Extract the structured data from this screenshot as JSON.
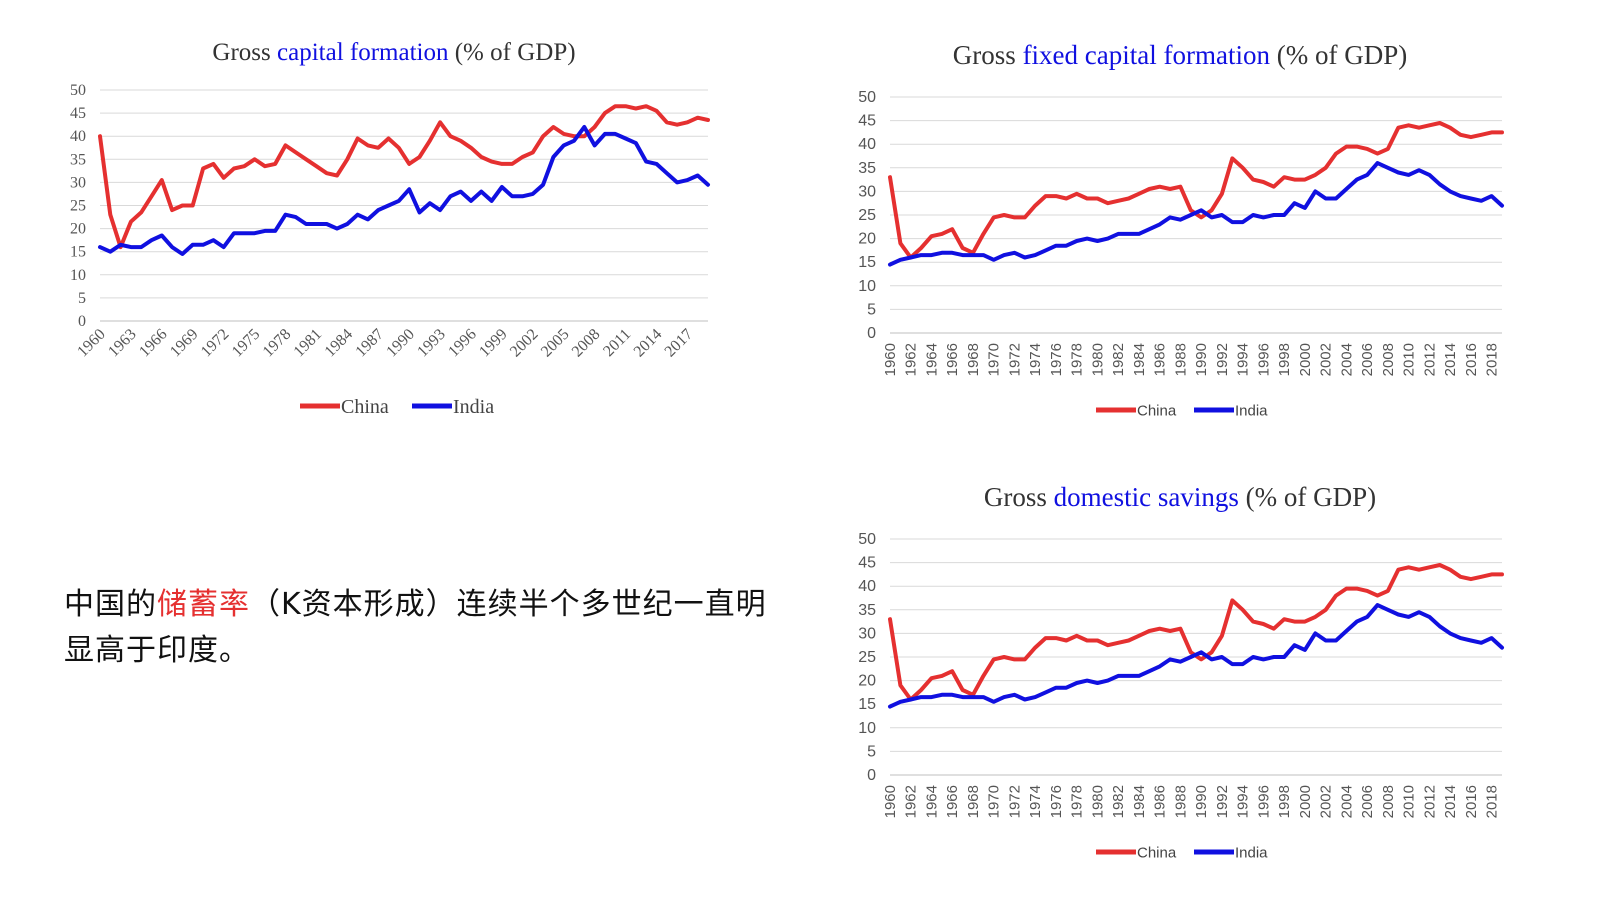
{
  "caption": {
    "before": "中国的",
    "highlight": "储蓄率",
    "after": "（K资本形成）连续半个多世纪一直明显高于印度。"
  },
  "colors": {
    "china": "#e53030",
    "india": "#1010e0",
    "title_highlight": "#1010e0",
    "grid": "#d9d9d9"
  },
  "chart_data": [
    {
      "type": "line",
      "title": {
        "prefix": "Gross ",
        "highlight": "capital formation",
        "suffix": " (% of GDP)"
      },
      "x": [
        1960,
        1961,
        1962,
        1963,
        1964,
        1965,
        1966,
        1967,
        1968,
        1969,
        1970,
        1971,
        1972,
        1973,
        1974,
        1975,
        1976,
        1977,
        1978,
        1979,
        1980,
        1981,
        1982,
        1983,
        1984,
        1985,
        1986,
        1987,
        1988,
        1989,
        1990,
        1991,
        1992,
        1993,
        1994,
        1995,
        1996,
        1997,
        1998,
        1999,
        2000,
        2001,
        2002,
        2003,
        2004,
        2005,
        2006,
        2007,
        2008,
        2009,
        2010,
        2011,
        2012,
        2013,
        2014,
        2015,
        2016,
        2017,
        2018,
        2019
      ],
      "xticks": [
        "1960",
        "1963",
        "1966",
        "1969",
        "1972",
        "1975",
        "1978",
        "1981",
        "1984",
        "1987",
        "1990",
        "1993",
        "1996",
        "1999",
        "2002",
        "2005",
        "2008",
        "2011",
        "2014",
        "2017"
      ],
      "ylim": [
        0,
        50
      ],
      "yticks": [
        "0",
        "5",
        "10",
        "15",
        "20",
        "25",
        "30",
        "35",
        "40",
        "45",
        "50"
      ],
      "series": [
        {
          "name": "China",
          "values": [
            40,
            23,
            16,
            21.5,
            23.5,
            27,
            30.5,
            24,
            25,
            25,
            33,
            34,
            31,
            33,
            33.5,
            35,
            33.5,
            34,
            38,
            36.5,
            35,
            33.5,
            32,
            31.5,
            35,
            39.5,
            38,
            37.5,
            39.5,
            37.5,
            34,
            35.5,
            39,
            43,
            40,
            39,
            37.5,
            35.5,
            34.5,
            34,
            34,
            35.5,
            36.5,
            40,
            42,
            40.5,
            40,
            40,
            42,
            45,
            46.5,
            46.5,
            46,
            46.5,
            45.5,
            43,
            42.5,
            43,
            44,
            43.5
          ]
        },
        {
          "name": "India",
          "values": [
            16,
            15,
            16.5,
            16,
            16,
            17.5,
            18.5,
            16,
            14.5,
            16.5,
            16.5,
            17.5,
            16,
            19,
            19,
            19,
            19.5,
            19.5,
            23,
            22.5,
            21,
            21,
            21,
            20,
            21,
            23,
            22,
            24,
            25,
            26,
            28.5,
            23.5,
            25.5,
            24,
            27,
            28,
            26,
            28,
            26,
            29,
            27,
            27,
            27.5,
            29.5,
            35.5,
            38,
            39,
            42,
            38,
            40.5,
            40.5,
            39.5,
            38.5,
            34.5,
            34,
            32,
            30,
            30.5,
            31.5,
            29.5
          ]
        }
      ]
    },
    {
      "type": "line",
      "title": {
        "prefix": "Gross ",
        "highlight": "fixed capital formation",
        "suffix": " (% of GDP)"
      },
      "x": [
        1960,
        1961,
        1962,
        1963,
        1964,
        1965,
        1966,
        1967,
        1968,
        1969,
        1970,
        1971,
        1972,
        1973,
        1974,
        1975,
        1976,
        1977,
        1978,
        1979,
        1980,
        1981,
        1982,
        1983,
        1984,
        1985,
        1986,
        1987,
        1988,
        1989,
        1990,
        1991,
        1992,
        1993,
        1994,
        1995,
        1996,
        1997,
        1998,
        1999,
        2000,
        2001,
        2002,
        2003,
        2004,
        2005,
        2006,
        2007,
        2008,
        2009,
        2010,
        2011,
        2012,
        2013,
        2014,
        2015,
        2016,
        2017,
        2018,
        2019
      ],
      "xticks": [
        "1960",
        "1962",
        "1964",
        "1966",
        "1968",
        "1970",
        "1972",
        "1974",
        "1976",
        "1978",
        "1980",
        "1982",
        "1984",
        "1986",
        "1988",
        "1990",
        "1992",
        "1994",
        "1996",
        "1998",
        "2000",
        "2002",
        "2004",
        "2006",
        "2008",
        "2010",
        "2012",
        "2014",
        "2016",
        "2018"
      ],
      "ylim": [
        0,
        50
      ],
      "yticks": [
        "0",
        "5",
        "10",
        "15",
        "20",
        "25",
        "30",
        "35",
        "40",
        "45",
        "50"
      ],
      "series": [
        {
          "name": "China",
          "values": [
            33,
            19,
            16,
            18,
            20.5,
            21,
            22,
            18,
            17,
            21,
            24.5,
            25,
            24.5,
            24.5,
            27,
            29,
            29,
            28.5,
            29.5,
            28.5,
            28.5,
            27.5,
            28,
            28.5,
            29.5,
            30.5,
            31,
            30.5,
            31,
            26,
            24.5,
            26,
            29.5,
            37,
            35,
            32.5,
            32,
            31,
            33,
            32.5,
            32.5,
            33.5,
            35,
            38,
            39.5,
            39.5,
            39,
            38,
            39,
            43.5,
            44,
            43.5,
            44,
            44.5,
            43.5,
            42,
            41.5,
            42,
            42.5,
            42.5
          ]
        },
        {
          "name": "India",
          "values": [
            14.5,
            15.5,
            16,
            16.5,
            16.5,
            17,
            17,
            16.5,
            16.5,
            16.5,
            15.5,
            16.5,
            17,
            16,
            16.5,
            17.5,
            18.5,
            18.5,
            19.5,
            20,
            19.5,
            20,
            21,
            21,
            21,
            22,
            23,
            24.5,
            24,
            25,
            26,
            24.5,
            25,
            23.5,
            23.5,
            25,
            24.5,
            25,
            25,
            27.5,
            26.5,
            30,
            28.5,
            28.5,
            30.5,
            32.5,
            33.5,
            36,
            35,
            34,
            33.5,
            34.5,
            33.5,
            31.5,
            30,
            29,
            28.5,
            28,
            29,
            27
          ]
        }
      ]
    },
    {
      "type": "line",
      "title": {
        "prefix": "Gross ",
        "highlight": "domestic savings",
        "suffix": " (% of GDP)"
      },
      "x": [
        1960,
        1961,
        1962,
        1963,
        1964,
        1965,
        1966,
        1967,
        1968,
        1969,
        1970,
        1971,
        1972,
        1973,
        1974,
        1975,
        1976,
        1977,
        1978,
        1979,
        1980,
        1981,
        1982,
        1983,
        1984,
        1985,
        1986,
        1987,
        1988,
        1989,
        1990,
        1991,
        1992,
        1993,
        1994,
        1995,
        1996,
        1997,
        1998,
        1999,
        2000,
        2001,
        2002,
        2003,
        2004,
        2005,
        2006,
        2007,
        2008,
        2009,
        2010,
        2011,
        2012,
        2013,
        2014,
        2015,
        2016,
        2017,
        2018,
        2019
      ],
      "xticks": [
        "1960",
        "1962",
        "1964",
        "1966",
        "1968",
        "1970",
        "1972",
        "1974",
        "1976",
        "1978",
        "1980",
        "1982",
        "1984",
        "1986",
        "1988",
        "1990",
        "1992",
        "1994",
        "1996",
        "1998",
        "2000",
        "2002",
        "2004",
        "2006",
        "2008",
        "2010",
        "2012",
        "2014",
        "2016",
        "2018"
      ],
      "ylim": [
        0,
        50
      ],
      "yticks": [
        "0",
        "5",
        "10",
        "15",
        "20",
        "25",
        "30",
        "35",
        "40",
        "45",
        "50"
      ],
      "series": [
        {
          "name": "China",
          "values": [
            33,
            19,
            16,
            18,
            20.5,
            21,
            22,
            18,
            17,
            21,
            24.5,
            25,
            24.5,
            24.5,
            27,
            29,
            29,
            28.5,
            29.5,
            28.5,
            28.5,
            27.5,
            28,
            28.5,
            29.5,
            30.5,
            31,
            30.5,
            31,
            26,
            24.5,
            26,
            29.5,
            37,
            35,
            32.5,
            32,
            31,
            33,
            32.5,
            32.5,
            33.5,
            35,
            38,
            39.5,
            39.5,
            39,
            38,
            39,
            43.5,
            44,
            43.5,
            44,
            44.5,
            43.5,
            42,
            41.5,
            42,
            42.5,
            42.5
          ]
        },
        {
          "name": "India",
          "values": [
            14.5,
            15.5,
            16,
            16.5,
            16.5,
            17,
            17,
            16.5,
            16.5,
            16.5,
            15.5,
            16.5,
            17,
            16,
            16.5,
            17.5,
            18.5,
            18.5,
            19.5,
            20,
            19.5,
            20,
            21,
            21,
            21,
            22,
            23,
            24.5,
            24,
            25,
            26,
            24.5,
            25,
            23.5,
            23.5,
            25,
            24.5,
            25,
            25,
            27.5,
            26.5,
            30,
            28.5,
            28.5,
            30.5,
            32.5,
            33.5,
            36,
            35,
            34,
            33.5,
            34.5,
            33.5,
            31.5,
            30,
            29,
            28.5,
            28,
            29,
            27
          ]
        }
      ]
    }
  ]
}
